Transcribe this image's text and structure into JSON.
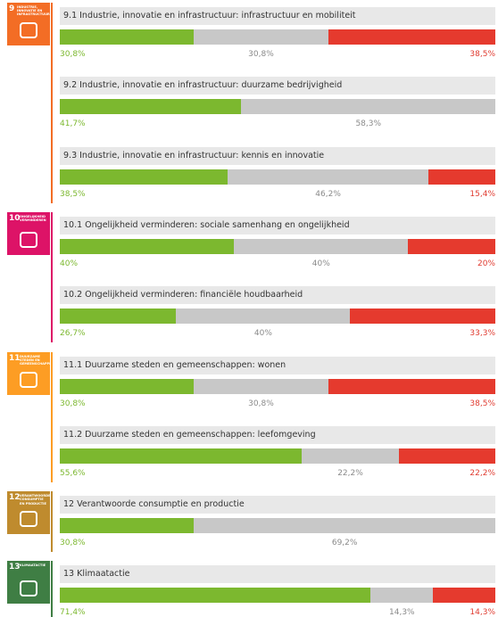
{
  "chart_data": {
    "type": "stacked-bar",
    "xlim": [
      0,
      100
    ],
    "colors": [
      "#7cb82f",
      "#c8c8c8",
      "#e53a2e"
    ],
    "label_colors": [
      "#7cb82f",
      "#8a8a8a",
      "#e03c31"
    ],
    "goals": [
      {
        "number": "9",
        "label": "INDUSTRIE, INNOVATIE EN INFRASTRUCTUUR",
        "color": "#f36d25",
        "items": [
          {
            "title": "9.1 Industrie, innovatie en infrastructuur: infrastructuur en mobiliteit",
            "values": [
              30.8,
              30.8,
              38.5
            ],
            "value_labels": [
              "30,8%",
              "30,8%",
              "38,5%"
            ]
          },
          {
            "title": "9.2 Industrie, innovatie en infrastructuur: duurzame bedrijvigheid",
            "values": [
              41.7,
              58.3,
              null
            ],
            "value_labels": [
              "41,7%",
              "58,3%",
              null
            ]
          },
          {
            "title": "9.3 Industrie, innovatie en infrastructuur: kennis en innovatie",
            "values": [
              38.5,
              46.2,
              15.4
            ],
            "value_labels": [
              "38,5%",
              "46,2%",
              "15,4%"
            ]
          }
        ]
      },
      {
        "number": "10",
        "label": "ONGELIJKHEID VERMINDEREN",
        "color": "#dd1367",
        "items": [
          {
            "title": "10.1 Ongelijkheid verminderen: sociale samenhang en ongelijkheid",
            "values": [
              40,
              40,
              20
            ],
            "value_labels": [
              "40%",
              "40%",
              "20%"
            ]
          },
          {
            "title": "10.2 Ongelijkheid verminderen: financiële houdbaarheid",
            "values": [
              26.7,
              40,
              33.3
            ],
            "value_labels": [
              "26,7%",
              "40%",
              "33,3%"
            ]
          }
        ]
      },
      {
        "number": "11",
        "label": "DUURZAME STEDEN EN GEMEENSCHAPPEN",
        "color": "#fd9d24",
        "items": [
          {
            "title": "11.1 Duurzame steden en gemeenschappen: wonen",
            "values": [
              30.8,
              30.8,
              38.5
            ],
            "value_labels": [
              "30,8%",
              "30,8%",
              "38,5%"
            ]
          },
          {
            "title": "11.2 Duurzame steden en gemeenschappen: leefomgeving",
            "values": [
              55.6,
              22.2,
              22.2
            ],
            "value_labels": [
              "55,6%",
              "22,2%",
              "22,2%"
            ]
          }
        ]
      },
      {
        "number": "12",
        "label": "VERANTWOORDE CONSUMPTIE EN PRODUCTIE",
        "color": "#bf8b2e",
        "items": [
          {
            "title": "12 Verantwoorde consumptie en productie",
            "values": [
              30.8,
              69.2,
              null
            ],
            "value_labels": [
              "30,8%",
              "69,2%",
              null
            ]
          }
        ]
      },
      {
        "number": "13",
        "label": "KLIMAATACTIE",
        "color": "#3f7e44",
        "items": [
          {
            "title": "13 Klimaatactie",
            "values": [
              71.4,
              14.3,
              14.3
            ],
            "value_labels": [
              "71,4%",
              "14,3%",
              "14,3%"
            ]
          }
        ]
      }
    ]
  }
}
